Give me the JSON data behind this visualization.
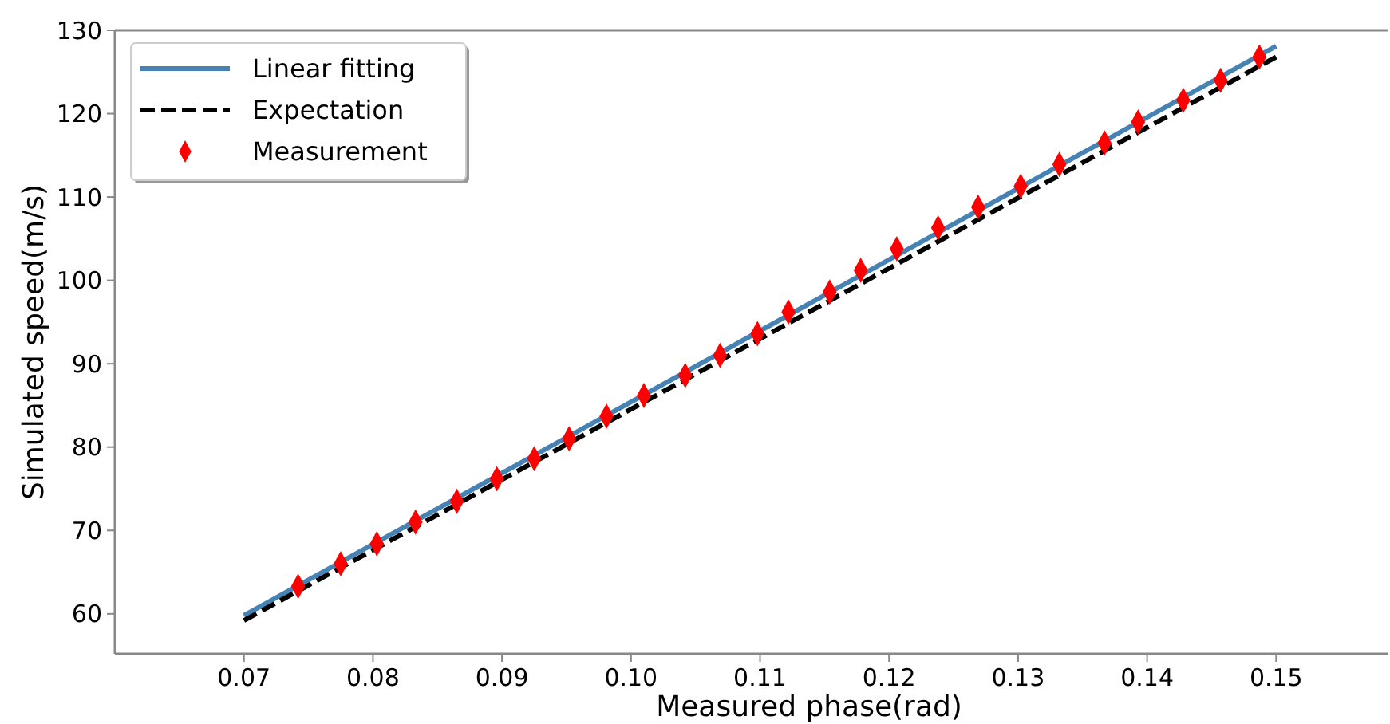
{
  "chart_data": {
    "type": "line",
    "xlabel": "Measured phase(rad)",
    "ylabel": "Simulated speed(m/s)",
    "xlim": [
      0.06,
      0.1587
    ],
    "ylim": [
      55.2,
      130
    ],
    "xticks": [
      0.07,
      0.08,
      0.09,
      {
        "value": 0.1,
        "label": "0.10"
      },
      0.11,
      0.12,
      0.13,
      0.14,
      0.15
    ],
    "yticks": [
      60,
      70,
      80,
      90,
      100,
      110,
      120,
      130
    ],
    "grid": false,
    "legend": "top left",
    "series": [
      {
        "name": "Linear fitting",
        "color": "#4682b4",
        "line_style": "solid",
        "marker": "none",
        "x": [
          0.07,
          0.15
        ],
        "values": [
          59.8,
          128.1
        ]
      },
      {
        "name": "Expectation",
        "color": "#000000",
        "line_style": "dashed",
        "marker": "none",
        "x": [
          0.07,
          0.15
        ],
        "values": [
          59.2,
          126.8
        ]
      },
      {
        "name": "Measurement",
        "type": "scatter",
        "color": "#ff0000",
        "marker": "diamond",
        "x": [
          0.0742,
          0.0775,
          0.0803,
          0.0833,
          0.0865,
          0.0896,
          0.0925,
          0.0952,
          0.0981,
          0.101,
          0.1042,
          0.1069,
          0.1098,
          0.1122,
          0.1154,
          0.1178,
          0.1206,
          0.1238,
          0.1269,
          0.1302,
          0.1332,
          0.1367,
          0.1393,
          0.1428,
          0.1457,
          0.1487
        ],
        "values": [
          63.3,
          66,
          68.4,
          71,
          73.5,
          76.2,
          78.6,
          81,
          83.7,
          86.2,
          88.6,
          91,
          93.6,
          96.2,
          98.6,
          101.2,
          103.8,
          106.3,
          108.8,
          111.3,
          113.9,
          116.5,
          119,
          121.6,
          124,
          126.8
        ]
      }
    ]
  }
}
